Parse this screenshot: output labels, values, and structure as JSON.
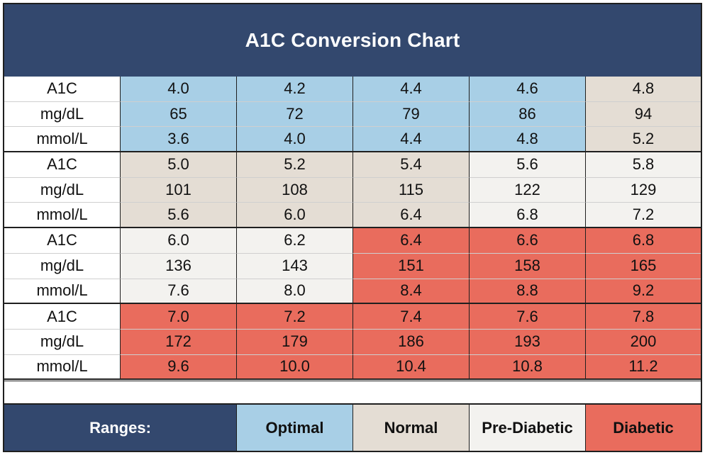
{
  "title": "A1C Conversion Chart",
  "row_labels": [
    "A1C",
    "mg/dL",
    "mmol/L"
  ],
  "colors": {
    "header": "#33486e",
    "optimal": "#a8cfe6",
    "normal": "#e4ddd4",
    "pre_diabetic": "#f3f2ef",
    "diabetic": "#e96c5d"
  },
  "groups": [
    {
      "a1c": [
        "4.0",
        "4.2",
        "4.4",
        "4.6",
        "4.8"
      ],
      "mgdl": [
        "65",
        "72",
        "79",
        "86",
        "94"
      ],
      "mmol": [
        "3.6",
        "4.0",
        "4.4",
        "4.8",
        "5.2"
      ],
      "ranges": [
        "optimal",
        "optimal",
        "optimal",
        "optimal",
        "normal"
      ]
    },
    {
      "a1c": [
        "5.0",
        "5.2",
        "5.4",
        "5.6",
        "5.8"
      ],
      "mgdl": [
        "101",
        "108",
        "115",
        "122",
        "129"
      ],
      "mmol": [
        "5.6",
        "6.0",
        "6.4",
        "6.8",
        "7.2"
      ],
      "ranges": [
        "normal",
        "normal",
        "normal",
        "pre_diabetic",
        "pre_diabetic"
      ]
    },
    {
      "a1c": [
        "6.0",
        "6.2",
        "6.4",
        "6.6",
        "6.8"
      ],
      "mgdl": [
        "136",
        "143",
        "151",
        "158",
        "165"
      ],
      "mmol": [
        "7.6",
        "8.0",
        "8.4",
        "8.8",
        "9.2"
      ],
      "ranges": [
        "pre_diabetic",
        "pre_diabetic",
        "diabetic",
        "diabetic",
        "diabetic"
      ]
    },
    {
      "a1c": [
        "7.0",
        "7.2",
        "7.4",
        "7.6",
        "7.8"
      ],
      "mgdl": [
        "172",
        "179",
        "186",
        "193",
        "200"
      ],
      "mmol": [
        "9.6",
        "10.0",
        "10.4",
        "10.8",
        "11.2"
      ],
      "ranges": [
        "diabetic",
        "diabetic",
        "diabetic",
        "diabetic",
        "diabetic"
      ]
    }
  ],
  "legend": {
    "ranges_label": "Ranges:",
    "optimal": "Optimal",
    "normal": "Normal",
    "pre_diabetic": "Pre-Diabetic",
    "diabetic": "Diabetic"
  }
}
